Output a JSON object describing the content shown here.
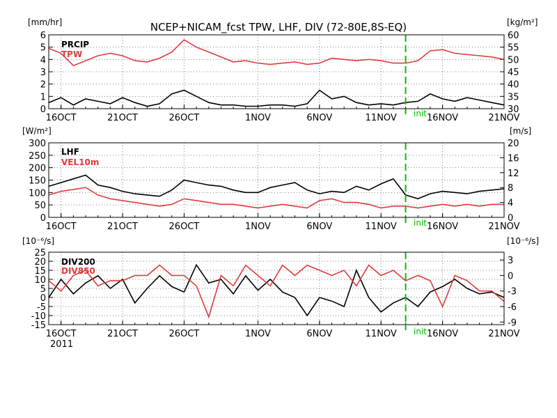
{
  "title": "NCEP+NICAM_fcst TPW, LHF, DIV (72-80E,8S-EQ)",
  "x_labels": [
    "16OCT",
    "21OCT",
    "26OCT",
    "1NOV",
    "6NOV",
    "11NOV",
    "16NOV",
    "21NOV"
  ],
  "year_label": "2011",
  "init_label": "init",
  "colors": {
    "black": "#000000",
    "red": "#e03c3c",
    "init": "#00c000"
  },
  "chart_data": [
    {
      "type": "line",
      "left_unit": "[mm/hr]",
      "right_unit": "[kg/m²]",
      "left_ticks": [
        "0",
        "1",
        "2",
        "3",
        "4",
        "5",
        "6"
      ],
      "right_ticks": [
        "30",
        "35",
        "40",
        "45",
        "50",
        "55",
        "60"
      ],
      "ylim_left": [
        0,
        6
      ],
      "ylim_right": [
        30,
        60
      ],
      "x": [
        "15OCT",
        "16OCT",
        "17OCT",
        "18OCT",
        "19OCT",
        "20OCT",
        "21OCT",
        "22OCT",
        "23OCT",
        "24OCT",
        "25OCT",
        "26OCT",
        "27OCT",
        "28OCT",
        "29OCT",
        "30OCT",
        "31OCT",
        "1NOV",
        "2NOV",
        "3NOV",
        "4NOV",
        "5NOV",
        "6NOV",
        "7NOV",
        "8NOV",
        "9NOV",
        "10NOV",
        "11NOV",
        "12NOV",
        "13NOV",
        "14NOV",
        "15NOV",
        "16NOV",
        "17NOV",
        "18NOV",
        "19NOV",
        "20NOV",
        "21NOV"
      ],
      "init_date": "13NOV",
      "series": [
        {
          "name": "PRCIP",
          "axis": "left",
          "color": "black",
          "values": [
            0.5,
            0.9,
            0.3,
            0.8,
            0.6,
            0.4,
            0.9,
            0.5,
            0.2,
            0.4,
            1.2,
            1.5,
            1.0,
            0.5,
            0.3,
            0.3,
            0.2,
            0.2,
            0.3,
            0.3,
            0.2,
            0.4,
            1.5,
            0.8,
            1.0,
            0.5,
            0.3,
            0.4,
            0.3,
            0.5,
            0.6,
            1.2,
            0.8,
            0.6,
            0.9,
            0.7,
            0.5,
            0.3
          ]
        },
        {
          "name": "TPW",
          "axis": "right",
          "color": "red",
          "values": [
            54.5,
            52.5,
            47.5,
            49.5,
            51.5,
            52.5,
            51.5,
            49.5,
            49.0,
            50.5,
            53.0,
            58.0,
            55.0,
            53.0,
            51.0,
            49.0,
            49.5,
            48.5,
            48.0,
            48.5,
            49.0,
            48.0,
            48.5,
            50.5,
            50.0,
            49.5,
            50.0,
            49.5,
            48.5,
            48.5,
            49.5,
            53.5,
            54.0,
            52.5,
            52.0,
            51.5,
            51.0,
            50.0
          ]
        }
      ]
    },
    {
      "type": "line",
      "left_unit": "[W/m²]",
      "right_unit": "[m/s]",
      "left_ticks": [
        "0",
        "50",
        "100",
        "150",
        "200",
        "250",
        "300"
      ],
      "right_ticks": [
        "0",
        "4",
        "8",
        "12",
        "16",
        "20"
      ],
      "ylim_left": [
        0,
        300
      ],
      "ylim_right": [
        0,
        20
      ],
      "x": [
        "15OCT",
        "16OCT",
        "17OCT",
        "18OCT",
        "19OCT",
        "20OCT",
        "21OCT",
        "22OCT",
        "23OCT",
        "24OCT",
        "25OCT",
        "26OCT",
        "27OCT",
        "28OCT",
        "29OCT",
        "30OCT",
        "31OCT",
        "1NOV",
        "2NOV",
        "3NOV",
        "4NOV",
        "5NOV",
        "6NOV",
        "7NOV",
        "8NOV",
        "9NOV",
        "10NOV",
        "11NOV",
        "12NOV",
        "13NOV",
        "14NOV",
        "15NOV",
        "16NOV",
        "17NOV",
        "18NOV",
        "19NOV",
        "20NOV",
        "21NOV"
      ],
      "init_date": "13NOV",
      "series": [
        {
          "name": "LHF",
          "axis": "left",
          "color": "black",
          "values": [
            125,
            140,
            155,
            170,
            130,
            120,
            105,
            95,
            90,
            85,
            110,
            150,
            140,
            130,
            125,
            110,
            100,
            100,
            120,
            130,
            140,
            110,
            95,
            105,
            100,
            125,
            110,
            135,
            155,
            90,
            75,
            95,
            105,
            100,
            95,
            105,
            110,
            115
          ]
        },
        {
          "name": "VEL10m",
          "axis": "right",
          "color": "red",
          "values": [
            6.0,
            7.0,
            7.5,
            8.0,
            6.0,
            5.0,
            4.5,
            4.0,
            3.5,
            3.0,
            3.5,
            5.0,
            4.5,
            4.0,
            3.5,
            3.5,
            3.0,
            2.5,
            3.0,
            3.5,
            3.0,
            2.5,
            4.5,
            5.0,
            4.0,
            4.0,
            3.5,
            2.5,
            3.0,
            3.0,
            2.5,
            3.0,
            3.5,
            3.0,
            3.5,
            3.0,
            3.5,
            3.5
          ]
        }
      ]
    },
    {
      "type": "line",
      "left_unit": "[10⁻⁶/s]",
      "right_unit": "[10⁻⁶/s]",
      "left_ticks": [
        "-15",
        "-10",
        "-5",
        "0",
        "5",
        "10",
        "15",
        "20",
        "25"
      ],
      "right_ticks": [
        "-9",
        "-6",
        "-3",
        "0",
        "3"
      ],
      "ylim_left": [
        -15,
        25
      ],
      "ylim_right": [
        -9.5,
        4.5
      ],
      "x": [
        "15OCT",
        "16OCT",
        "17OCT",
        "18OCT",
        "19OCT",
        "20OCT",
        "21OCT",
        "22OCT",
        "23OCT",
        "24OCT",
        "25OCT",
        "26OCT",
        "27OCT",
        "28OCT",
        "29OCT",
        "30OCT",
        "31OCT",
        "1NOV",
        "2NOV",
        "3NOV",
        "4NOV",
        "5NOV",
        "6NOV",
        "7NOV",
        "8NOV",
        "9NOV",
        "10NOV",
        "11NOV",
        "12NOV",
        "13NOV",
        "14NOV",
        "15NOV",
        "16NOV",
        "17NOV",
        "18NOV",
        "19NOV",
        "20NOV",
        "21NOV"
      ],
      "init_date": "13NOV",
      "series": [
        {
          "name": "DIV200",
          "axis": "left",
          "color": "black",
          "values": [
            0,
            10,
            2,
            8,
            12,
            5,
            10,
            -3,
            5,
            12,
            6,
            3,
            18,
            8,
            10,
            2,
            12,
            4,
            10,
            3,
            0,
            -10,
            0,
            -2,
            -5,
            15,
            0,
            -8,
            -3,
            0,
            -5,
            3,
            6,
            10,
            5,
            2,
            3,
            0
          ]
        },
        {
          "name": "DIV850",
          "axis": "right",
          "color": "red",
          "values": [
            -1,
            -3,
            0,
            1,
            -2,
            -1,
            -1,
            0,
            0,
            2,
            0,
            0,
            -2,
            -8,
            0,
            -2,
            2,
            0,
            -2,
            2,
            0,
            2,
            1,
            0,
            1,
            -2,
            2,
            0,
            1,
            -1,
            0,
            -1,
            -6,
            0,
            -1,
            -3,
            -3,
            -5
          ]
        }
      ]
    }
  ]
}
